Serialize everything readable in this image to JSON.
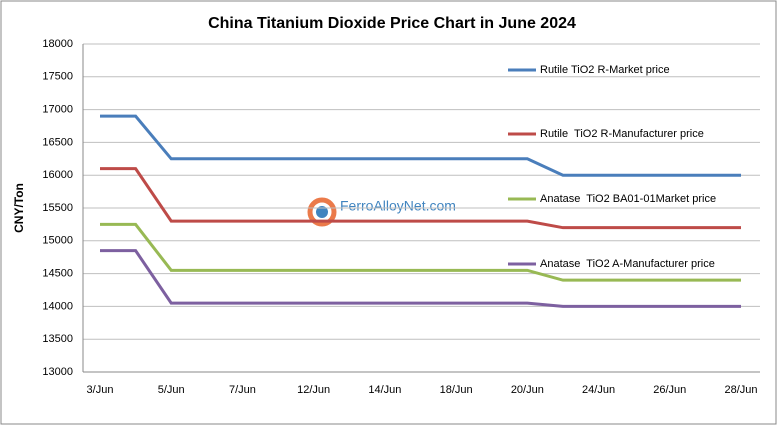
{
  "chart_data": {
    "type": "line",
    "title": "China Titanium Dioxide Price Chart in June 2024",
    "y_label": "CNY/Ton",
    "watermark": "FerroAlloyNet.com",
    "categories": [
      "3/Jun",
      null,
      "5/Jun",
      null,
      "7/Jun",
      null,
      "12/Jun",
      null,
      "14/Jun",
      null,
      "18/Jun",
      null,
      "20/Jun",
      null,
      "24/Jun",
      null,
      "26/Jun",
      null,
      "28/Jun"
    ],
    "series": [
      {
        "name": "Rutile TiO2 R-Market price",
        "color": "#4a7ebb",
        "values": [
          16900,
          16900,
          16250,
          16250,
          16250,
          16250,
          16250,
          16250,
          16250,
          16250,
          16250,
          16250,
          16250,
          16000,
          16000,
          16000,
          16000,
          16000,
          16000
        ]
      },
      {
        "name": "Rutile  TiO2 R-Manufacturer price",
        "color": "#be4b48",
        "values": [
          16100,
          16100,
          15300,
          15300,
          15300,
          15300,
          15300,
          15300,
          15300,
          15300,
          15300,
          15300,
          15300,
          15200,
          15200,
          15200,
          15200,
          15200,
          15200
        ]
      },
      {
        "name": "Anatase  TiO2 BA01-01Market price",
        "color": "#98b954",
        "values": [
          15250,
          15250,
          14550,
          14550,
          14550,
          14550,
          14550,
          14550,
          14550,
          14550,
          14550,
          14550,
          14550,
          14400,
          14400,
          14400,
          14400,
          14400,
          14400
        ]
      },
      {
        "name": "Anatase  TiO2 A-Manufacturer price",
        "color": "#7d60a0",
        "values": [
          14850,
          14850,
          14050,
          14050,
          14050,
          14050,
          14050,
          14050,
          14050,
          14050,
          14050,
          14050,
          14050,
          14000,
          14000,
          14000,
          14000,
          14000,
          14000
        ]
      }
    ],
    "ylim": [
      13000,
      18000
    ],
    "yticks": [
      13000,
      13500,
      14000,
      14500,
      15000,
      15500,
      16000,
      16500,
      17000,
      17500,
      18000
    ],
    "grid": true
  }
}
